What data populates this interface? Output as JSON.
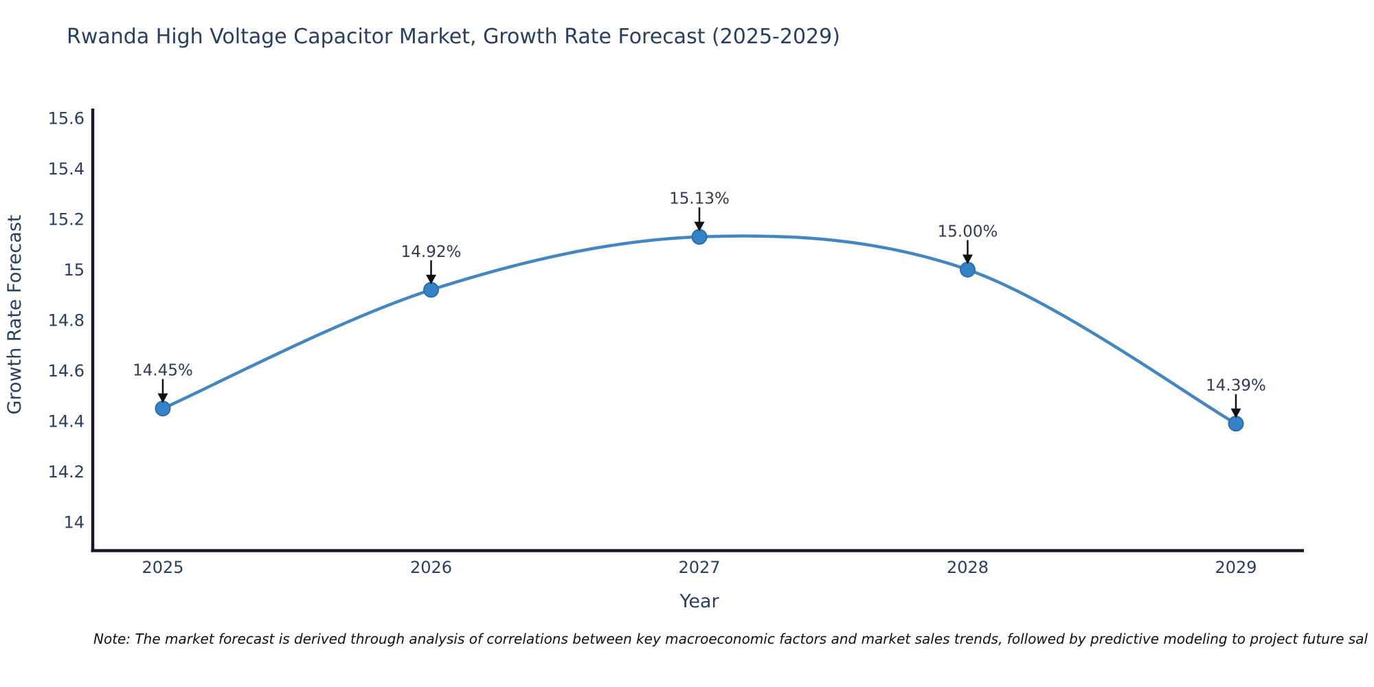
{
  "title": {
    "text": "Rwanda High Voltage Capacitor Market, Growth Rate Forecast (2025-2029)",
    "color": "#2a3f5f"
  },
  "note": {
    "text": "Note: The market forecast is derived through analysis of correlations between key macroeconomic factors and market sales trends, followed by predictive modeling to project future sal"
  },
  "chart_data": {
    "type": "line",
    "title": "Rwanda High Voltage Capacitor Market, Growth Rate Forecast (2025-2029)",
    "xlabel": "Year",
    "ylabel": "Growth Rate Forecast",
    "x": [
      2025,
      2026,
      2027,
      2028,
      2029
    ],
    "xtick_labels": [
      "2025",
      "2026",
      "2027",
      "2028",
      "2029"
    ],
    "values": [
      14.45,
      14.92,
      15.13,
      15.0,
      14.39
    ],
    "point_labels": [
      "14.45%",
      "14.92%",
      "15.13%",
      "15.00%",
      "14.39%"
    ],
    "ylim": [
      14,
      15.6
    ],
    "yticks": [
      14,
      14.2,
      14.4,
      14.6,
      14.8,
      15,
      15.2,
      15.4,
      15.6
    ],
    "ytick_labels": [
      "14",
      "14.2",
      "14.4",
      "14.6",
      "14.8",
      "15",
      "15.2",
      "15.4",
      "15.6"
    ],
    "line_shape": "spline",
    "grid": false,
    "legend_position": "none",
    "colors": {
      "line": "#4486c0",
      "marker_fill": "#3583c6",
      "marker_edge": "#2c6ea9",
      "axis_line": "#141a26",
      "text": "#2a3f5f",
      "annotation_text": "#2e3b50",
      "annotation_arrow": "#111111",
      "background": "#ffffff"
    }
  }
}
